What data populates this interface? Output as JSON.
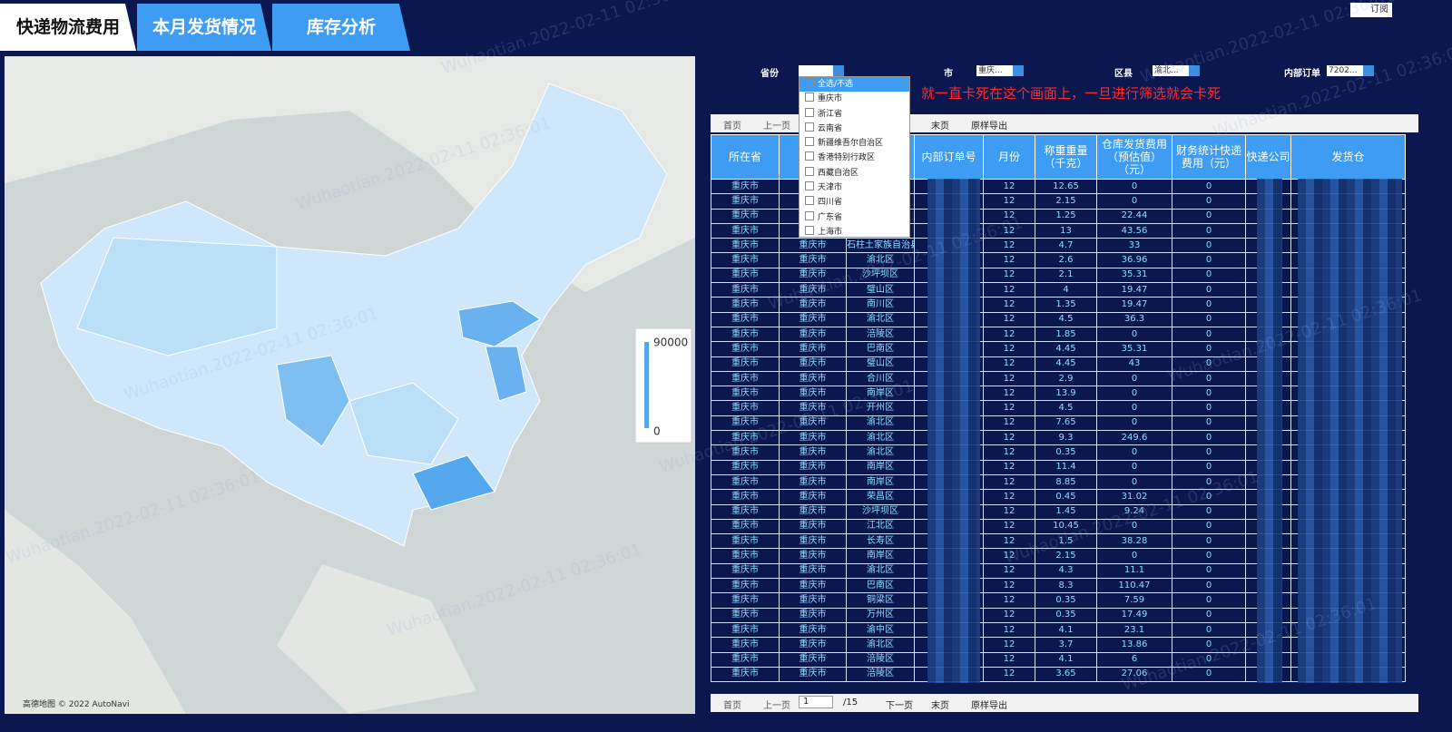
{
  "tabs": [
    "快递物流费用",
    "本月发货情况",
    "库存分析"
  ],
  "subscribe": "订阅",
  "watermark": "Wuhaotian.2022-02-11 02:36:01",
  "map": {
    "legend_max": "90000",
    "legend_min": "0",
    "attribution": "高德地图 © 2022 AutoNavi"
  },
  "filters": [
    {
      "label": "省份"
    },
    {
      "label": "市",
      "value": "重庆..."
    },
    {
      "label": "区县",
      "value": "渝北..."
    },
    {
      "label": "内部订单",
      "value": "7202..."
    }
  ],
  "dropdown": [
    "全选/不选",
    "重庆市",
    "浙江省",
    "云南省",
    "新疆维吾尔自治区",
    "香港特别行政区",
    "西藏自治区",
    "天津市",
    "四川省",
    "广东省",
    "上海市"
  ],
  "annotation": "就一直卡死在这个画面上，一旦进行筛选就会卡死",
  "toolbar": {
    "first": "首页",
    "prev": "上一页",
    "last": "末页",
    "export": "原样导出"
  },
  "pager": {
    "first": "首页",
    "prev": "上一页",
    "page": "1",
    "total": "/15",
    "next": "下一页",
    "last": "末页",
    "export": "原样导出"
  },
  "table": {
    "headers": [
      "所在省",
      null,
      null,
      "内部订单号",
      "月份",
      "称重重量（千克）",
      "仓库发货费用（预估值）（元）",
      "财务统计快递费用（元）",
      "快递公司",
      "发货仓"
    ],
    "rows": [
      [
        "重庆市",
        null,
        null,
        "12",
        "12.65",
        "0",
        "0"
      ],
      [
        "重庆市",
        null,
        null,
        "12",
        "2.15",
        "0",
        "0"
      ],
      [
        "重庆市",
        null,
        null,
        "12",
        "1.25",
        "22.44",
        "0"
      ],
      [
        "重庆市",
        null,
        null,
        "12",
        "13",
        "43.56",
        "0"
      ],
      [
        "重庆市",
        "重庆市",
        "石柱土家族自治县",
        "12",
        "4.7",
        "33",
        "0"
      ],
      [
        "重庆市",
        "重庆市",
        "渝北区",
        "12",
        "2.6",
        "36.96",
        "0"
      ],
      [
        "重庆市",
        "重庆市",
        "沙坪坝区",
        "12",
        "2.1",
        "35.31",
        "0"
      ],
      [
        "重庆市",
        "重庆市",
        "璧山区",
        "12",
        "4",
        "19.47",
        "0"
      ],
      [
        "重庆市",
        "重庆市",
        "南川区",
        "12",
        "1.35",
        "19.47",
        "0"
      ],
      [
        "重庆市",
        "重庆市",
        "渝北区",
        "12",
        "4.5",
        "36.3",
        "0"
      ],
      [
        "重庆市",
        "重庆市",
        "涪陵区",
        "12",
        "1.85",
        "0",
        "0"
      ],
      [
        "重庆市",
        "重庆市",
        "巴南区",
        "12",
        "4.45",
        "35.31",
        "0"
      ],
      [
        "重庆市",
        "重庆市",
        "璧山区",
        "12",
        "4.45",
        "43",
        "0"
      ],
      [
        "重庆市",
        "重庆市",
        "合川区",
        "12",
        "2.9",
        "0",
        "0"
      ],
      [
        "重庆市",
        "重庆市",
        "南岸区",
        "12",
        "13.9",
        "0",
        "0"
      ],
      [
        "重庆市",
        "重庆市",
        "开州区",
        "12",
        "4.5",
        "0",
        "0"
      ],
      [
        "重庆市",
        "重庆市",
        "渝北区",
        "12",
        "7.65",
        "0",
        "0"
      ],
      [
        "重庆市",
        "重庆市",
        "渝北区",
        "12",
        "9.3",
        "249.6",
        "0"
      ],
      [
        "重庆市",
        "重庆市",
        "渝北区",
        "12",
        "0.35",
        "0",
        "0"
      ],
      [
        "重庆市",
        "重庆市",
        "南岸区",
        "12",
        "11.4",
        "0",
        "0"
      ],
      [
        "重庆市",
        "重庆市",
        "南岸区",
        "12",
        "8.85",
        "0",
        "0"
      ],
      [
        "重庆市",
        "重庆市",
        "荣昌区",
        "12",
        "0.45",
        "31.02",
        "0"
      ],
      [
        "重庆市",
        "重庆市",
        "沙坪坝区",
        "12",
        "1.45",
        "9.24",
        "0"
      ],
      [
        "重庆市",
        "重庆市",
        "江北区",
        "12",
        "10.45",
        "0",
        "0"
      ],
      [
        "重庆市",
        "重庆市",
        "长寿区",
        "12",
        "1.5",
        "38.28",
        "0"
      ],
      [
        "重庆市",
        "重庆市",
        "南岸区",
        "12",
        "2.15",
        "0",
        "0"
      ],
      [
        "重庆市",
        "重庆市",
        "渝北区",
        "12",
        "4.3",
        "11.1",
        "0"
      ],
      [
        "重庆市",
        "重庆市",
        "巴南区",
        "12",
        "8.3",
        "110.47",
        "0"
      ],
      [
        "重庆市",
        "重庆市",
        "铜梁区",
        "12",
        "0.35",
        "7.59",
        "0"
      ],
      [
        "重庆市",
        "重庆市",
        "万州区",
        "12",
        "0.35",
        "17.49",
        "0"
      ],
      [
        "重庆市",
        "重庆市",
        "渝中区",
        "12",
        "4.1",
        "23.1",
        "0"
      ],
      [
        "重庆市",
        "重庆市",
        "渝北区",
        "12",
        "3.7",
        "13.86",
        "0"
      ],
      [
        "重庆市",
        "重庆市",
        "涪陵区",
        "12",
        "4.1",
        "6",
        "0"
      ],
      [
        "重庆市",
        "重庆市",
        "涪陵区",
        "12",
        "3.65",
        "27.06",
        "0"
      ]
    ]
  }
}
